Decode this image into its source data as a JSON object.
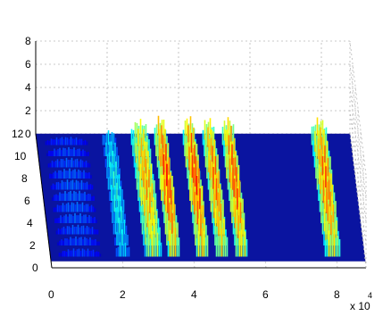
{
  "chart_data": {
    "type": "surface",
    "title": "",
    "colormap": "jet",
    "x_multiplier_label": "x 10",
    "x_multiplier_exponent": "4",
    "x_ticks": [
      "0",
      "2",
      "4",
      "6",
      "8"
    ],
    "y_ticks": [
      "0",
      "2",
      "4",
      "6",
      "8",
      "10",
      "12"
    ],
    "z_ticks": [
      "0",
      "2",
      "4",
      "6",
      "8"
    ],
    "xlim": [
      0,
      88000
    ],
    "ylim": [
      0,
      12
    ],
    "zlim": [
      0,
      8
    ],
    "base_level": 0,
    "grid": true,
    "peaks": [
      {
        "x_start": 2000,
        "x_end": 14500,
        "peak_z": 0.9
      },
      {
        "x_start": 18000,
        "x_end": 22500,
        "peak_z": 1.6
      },
      {
        "x_start": 26000,
        "x_end": 31500,
        "peak_z": 2.8
      },
      {
        "x_start": 32500,
        "x_end": 36500,
        "peak_z": 3.2
      },
      {
        "x_start": 40500,
        "x_end": 44500,
        "peak_z": 3.2
      },
      {
        "x_start": 46000,
        "x_end": 50000,
        "peak_z": 3.0
      },
      {
        "x_start": 51500,
        "x_end": 55500,
        "peak_z": 3.1
      },
      {
        "x_start": 76500,
        "x_end": 81500,
        "peak_z": 3.0
      }
    ]
  }
}
